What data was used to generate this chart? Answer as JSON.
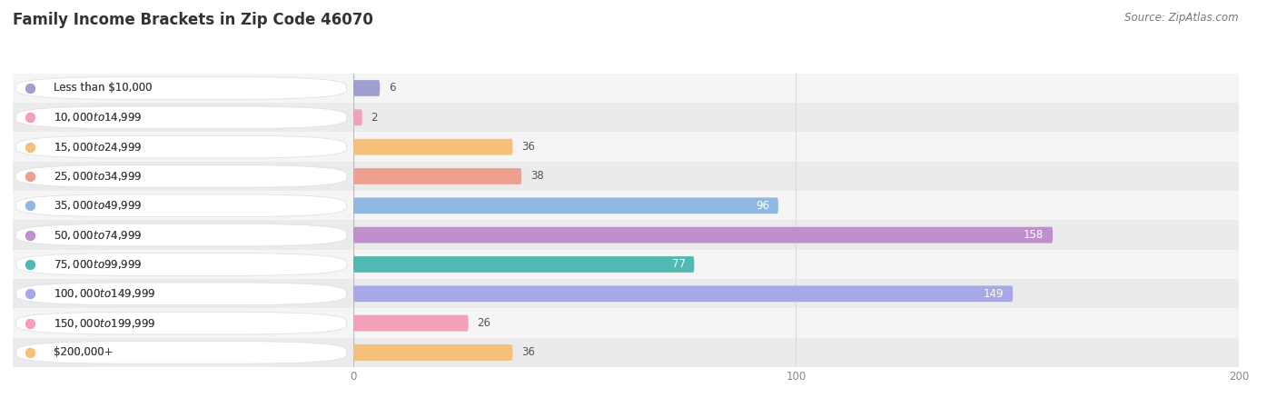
{
  "title": "Family Income Brackets in Zip Code 46070",
  "source": "Source: ZipAtlas.com",
  "categories": [
    "Less than $10,000",
    "$10,000 to $14,999",
    "$15,000 to $24,999",
    "$25,000 to $34,999",
    "$35,000 to $49,999",
    "$50,000 to $74,999",
    "$75,000 to $99,999",
    "$100,000 to $149,999",
    "$150,000 to $199,999",
    "$200,000+"
  ],
  "values": [
    6,
    2,
    36,
    38,
    96,
    158,
    77,
    149,
    26,
    36
  ],
  "bar_colors": [
    "#a0a0d0",
    "#f0a0b8",
    "#f5c07a",
    "#eeA090",
    "#90b8e0",
    "#c090cc",
    "#50bab2",
    "#a8a8e8",
    "#f4a0b8",
    "#f5c07a"
  ],
  "xlim": [
    0,
    200
  ],
  "xticks": [
    0,
    100,
    200
  ],
  "background_color": "#ffffff",
  "row_even_color": "#f5f5f5",
  "row_odd_color": "#ebebeb",
  "title_fontsize": 12,
  "label_fontsize": 8.5,
  "value_label_fontsize": 8.5,
  "source_fontsize": 8.5
}
